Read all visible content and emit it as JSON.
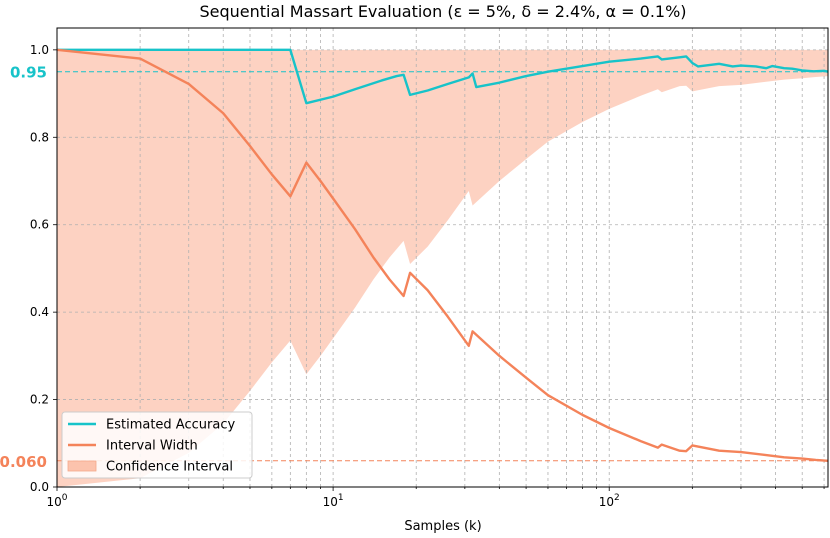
{
  "chart_data": {
    "type": "line",
    "title": "Sequential Massart Evaluation (ε = 5%, δ = 2.4%, α = 0.1%)",
    "xlabel": "Samples (k)",
    "ylabel": "",
    "x_scale": "log",
    "xlim": [
      1,
      620
    ],
    "ylim": [
      0,
      1.05
    ],
    "grid": true,
    "legend_position": "lower-left",
    "x_ticks": [
      {
        "value": 1,
        "label": "10^0"
      },
      {
        "value": 10,
        "label": "10^1"
      },
      {
        "value": 100,
        "label": "10^2"
      }
    ],
    "y_ticks": [
      0.0,
      0.2,
      0.4,
      0.6,
      0.8,
      1.0
    ],
    "y_tick_labels": [
      "0.0",
      "0.2",
      "0.4",
      "0.6",
      "0.8",
      "1.0"
    ],
    "reference_lines": [
      {
        "value": 0.95,
        "label": "0.95",
        "color": "#17c3c9"
      },
      {
        "value": 0.06,
        "label": "0.060",
        "color": "#f4835a"
      }
    ],
    "series": [
      {
        "name": "Estimated Accuracy",
        "color": "#17c3c9",
        "points": [
          [
            1,
            1.0
          ],
          [
            2,
            1.0
          ],
          [
            3,
            1.0
          ],
          [
            5,
            1.0
          ],
          [
            7,
            1.0
          ],
          [
            8,
            0.878
          ],
          [
            10,
            0.893
          ],
          [
            12,
            0.91
          ],
          [
            15,
            0.93
          ],
          [
            17,
            0.94
          ],
          [
            18,
            0.943
          ],
          [
            19,
            0.897
          ],
          [
            22,
            0.907
          ],
          [
            26,
            0.922
          ],
          [
            31,
            0.937
          ],
          [
            32,
            0.946
          ],
          [
            33,
            0.915
          ],
          [
            40,
            0.925
          ],
          [
            50,
            0.94
          ],
          [
            60,
            0.95
          ],
          [
            80,
            0.963
          ],
          [
            100,
            0.973
          ],
          [
            130,
            0.98
          ],
          [
            150,
            0.985
          ],
          [
            155,
            0.978
          ],
          [
            180,
            0.983
          ],
          [
            190,
            0.985
          ],
          [
            200,
            0.97
          ],
          [
            210,
            0.962
          ],
          [
            250,
            0.968
          ],
          [
            280,
            0.962
          ],
          [
            300,
            0.964
          ],
          [
            340,
            0.962
          ],
          [
            370,
            0.958
          ],
          [
            390,
            0.963
          ],
          [
            430,
            0.958
          ],
          [
            460,
            0.957
          ],
          [
            500,
            0.953
          ],
          [
            550,
            0.951
          ],
          [
            600,
            0.952
          ],
          [
            620,
            0.95
          ]
        ]
      },
      {
        "name": "Interval Width",
        "color": "#f4835a",
        "points": [
          [
            1,
            1.0
          ],
          [
            2,
            0.98
          ],
          [
            3,
            0.922
          ],
          [
            4,
            0.855
          ],
          [
            5,
            0.78
          ],
          [
            6,
            0.715
          ],
          [
            7,
            0.665
          ],
          [
            8,
            0.742
          ],
          [
            9,
            0.7
          ],
          [
            10,
            0.66
          ],
          [
            12,
            0.59
          ],
          [
            14,
            0.525
          ],
          [
            16,
            0.475
          ],
          [
            18,
            0.437
          ],
          [
            19,
            0.49
          ],
          [
            22,
            0.45
          ],
          [
            26,
            0.39
          ],
          [
            31,
            0.323
          ],
          [
            32,
            0.356
          ],
          [
            40,
            0.3
          ],
          [
            50,
            0.25
          ],
          [
            60,
            0.21
          ],
          [
            80,
            0.165
          ],
          [
            100,
            0.135
          ],
          [
            130,
            0.105
          ],
          [
            150,
            0.09
          ],
          [
            155,
            0.097
          ],
          [
            180,
            0.083
          ],
          [
            190,
            0.082
          ],
          [
            200,
            0.095
          ],
          [
            250,
            0.083
          ],
          [
            300,
            0.08
          ],
          [
            370,
            0.073
          ],
          [
            430,
            0.068
          ],
          [
            500,
            0.065
          ],
          [
            560,
            0.062
          ],
          [
            620,
            0.06
          ]
        ]
      },
      {
        "name": "Confidence Interval",
        "color": "#fcc3ad",
        "type": "band",
        "upper": [
          [
            1,
            1.0
          ],
          [
            620,
            1.0
          ]
        ],
        "lower": [
          [
            1,
            0.0
          ],
          [
            2,
            0.02
          ],
          [
            3,
            0.078
          ],
          [
            4,
            0.145
          ],
          [
            5,
            0.22
          ],
          [
            6,
            0.285
          ],
          [
            7,
            0.335
          ],
          [
            8,
            0.258
          ],
          [
            9,
            0.3
          ],
          [
            10,
            0.34
          ],
          [
            12,
            0.41
          ],
          [
            14,
            0.475
          ],
          [
            16,
            0.525
          ],
          [
            18,
            0.563
          ],
          [
            19,
            0.51
          ],
          [
            22,
            0.55
          ],
          [
            26,
            0.61
          ],
          [
            31,
            0.677
          ],
          [
            32,
            0.644
          ],
          [
            40,
            0.7
          ],
          [
            50,
            0.75
          ],
          [
            60,
            0.79
          ],
          [
            80,
            0.835
          ],
          [
            100,
            0.865
          ],
          [
            130,
            0.895
          ],
          [
            150,
            0.91
          ],
          [
            155,
            0.903
          ],
          [
            180,
            0.917
          ],
          [
            190,
            0.918
          ],
          [
            200,
            0.905
          ],
          [
            250,
            0.917
          ],
          [
            300,
            0.92
          ],
          [
            370,
            0.927
          ],
          [
            430,
            0.932
          ],
          [
            500,
            0.935
          ],
          [
            560,
            0.938
          ],
          [
            620,
            0.94
          ]
        ]
      }
    ]
  }
}
